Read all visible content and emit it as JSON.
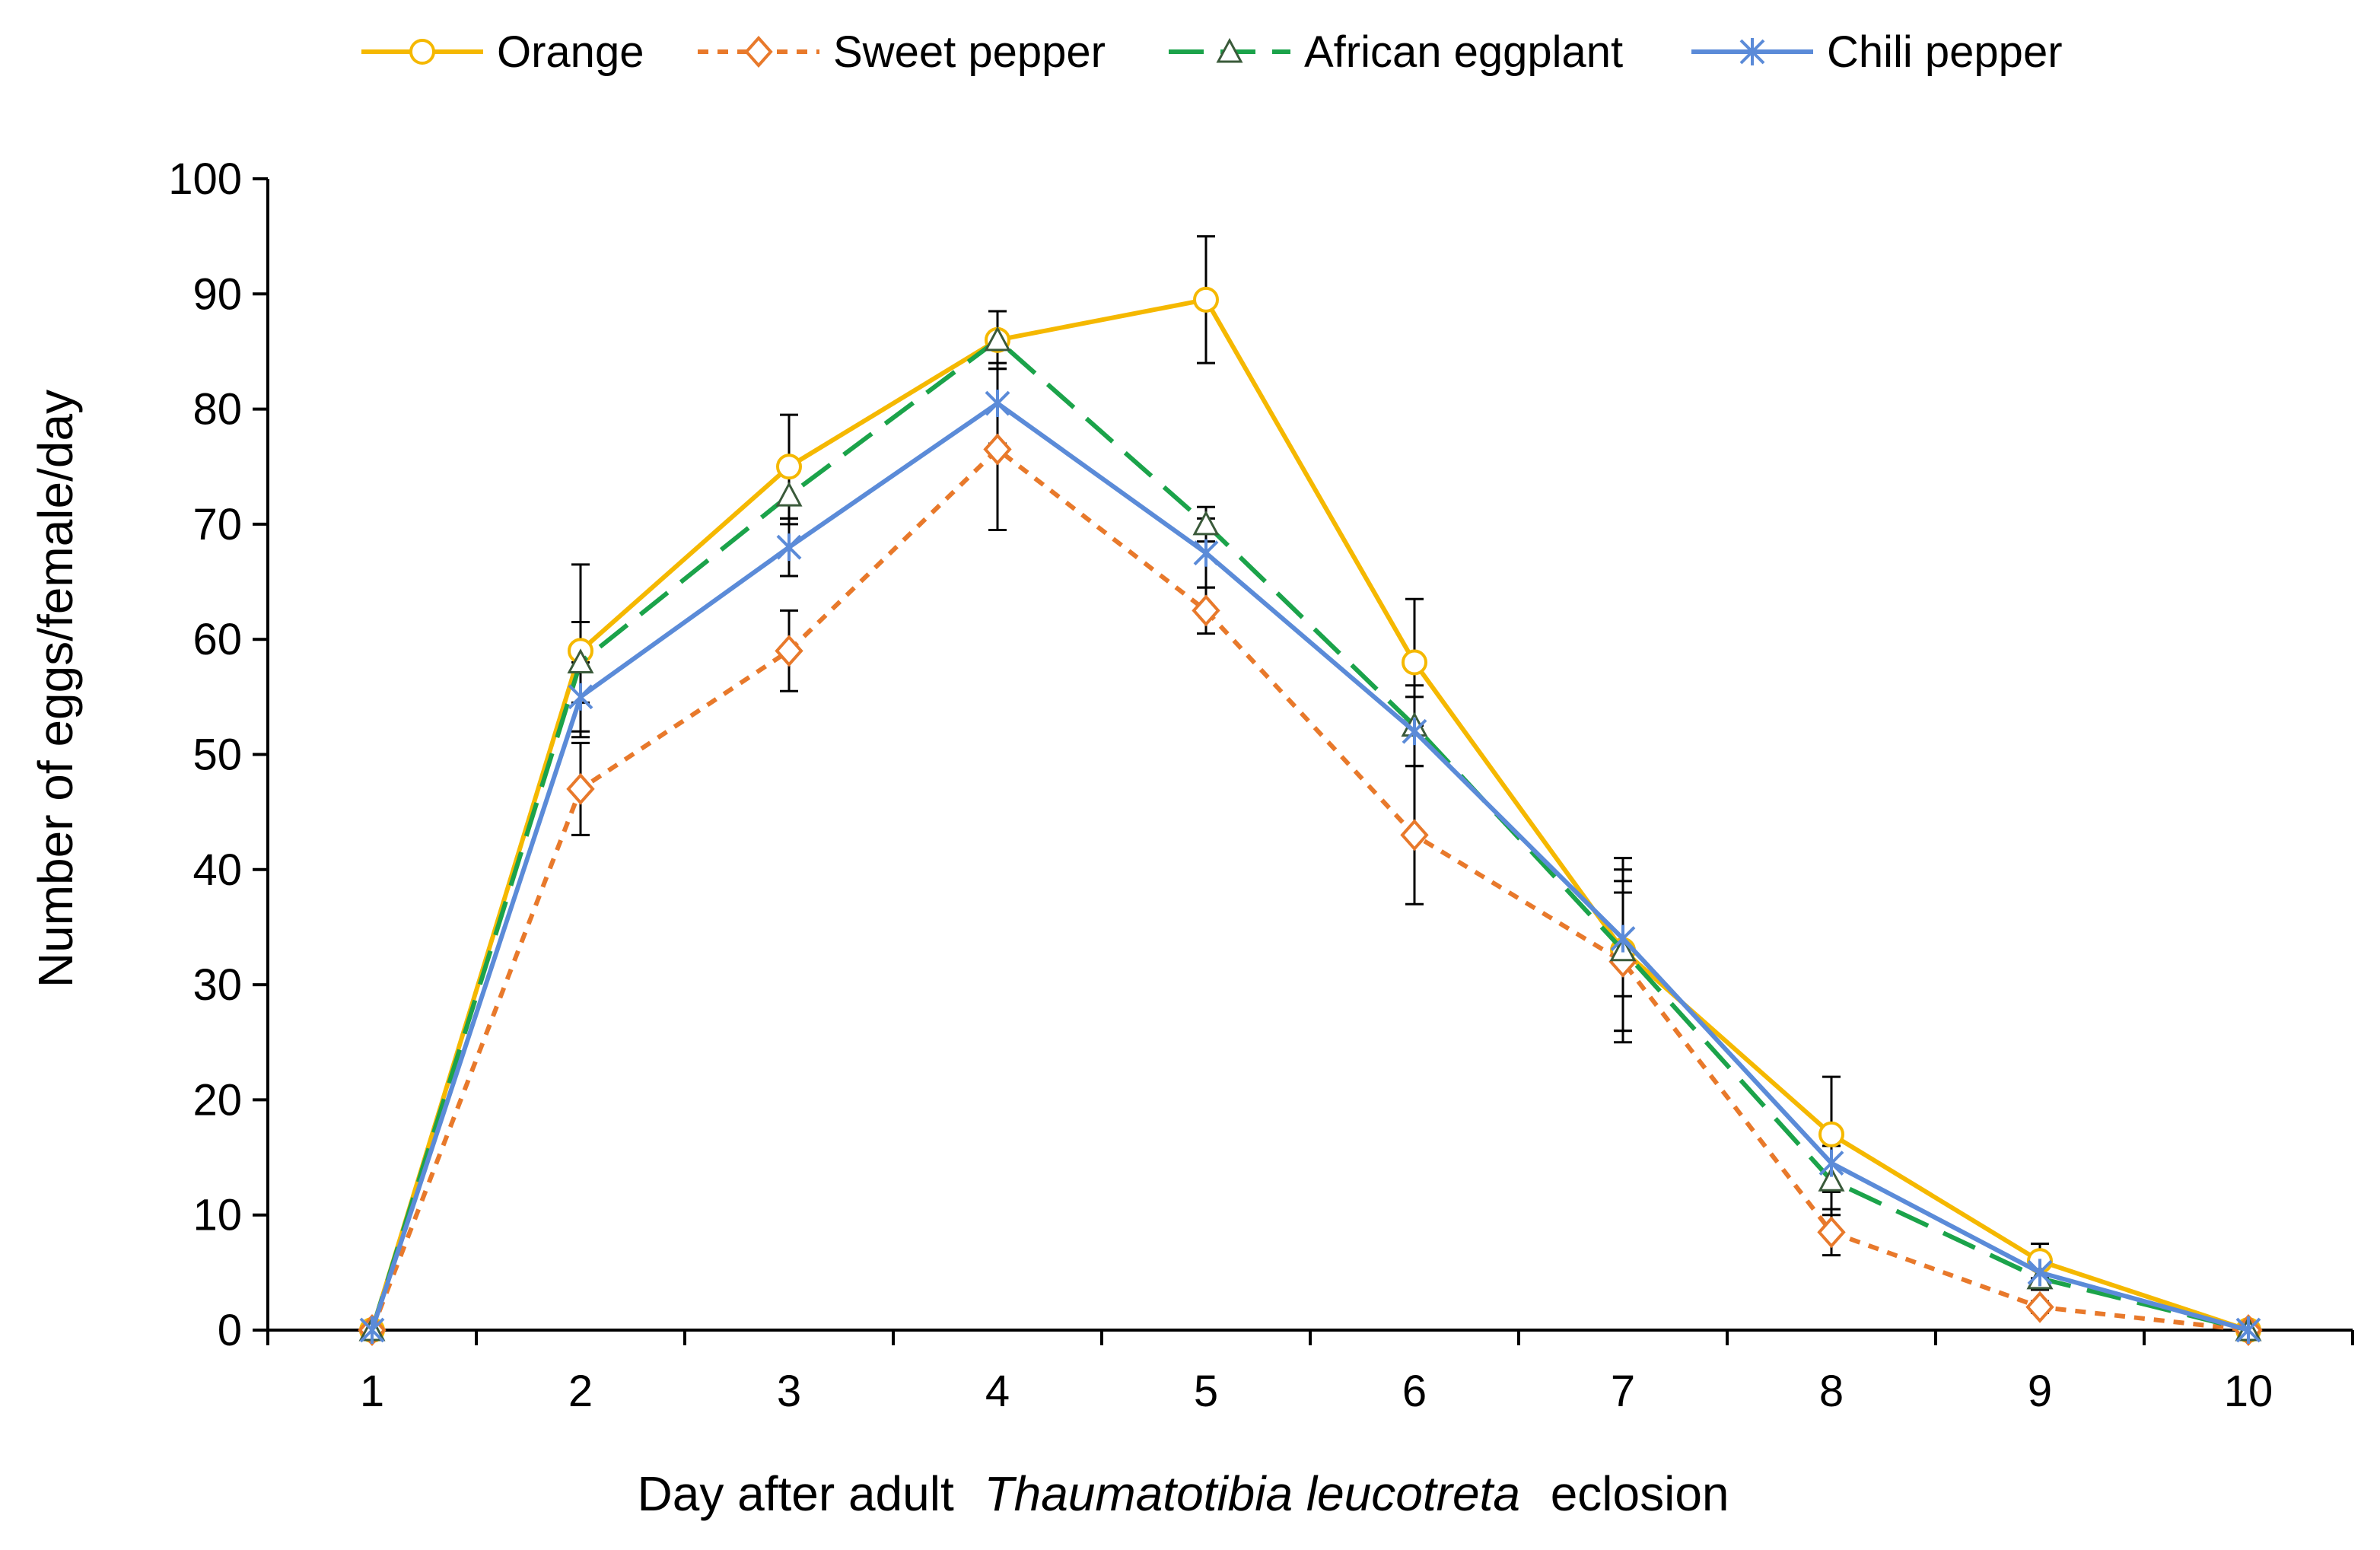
{
  "chart_data": {
    "type": "line",
    "title": "",
    "xlabel_prefix": "Day after adult",
    "xlabel_italic": "Thaumatotibia leucotreta",
    "xlabel_suffix": "eclosion",
    "ylabel": "Number of eggs/female/day",
    "x": [
      1,
      2,
      3,
      4,
      5,
      6,
      7,
      8,
      9,
      10
    ],
    "xticks": [
      "1",
      "2",
      "3",
      "4",
      "5",
      "6",
      "7",
      "8",
      "9",
      "10"
    ],
    "yticks": [
      "0",
      "10",
      "20",
      "30",
      "40",
      "50",
      "60",
      "70",
      "80",
      "90",
      "100"
    ],
    "ylim": [
      0,
      100
    ],
    "legend_position": "top",
    "series": [
      {
        "name": "Orange",
        "color": "#F5B800",
        "dash": "solid",
        "marker": "circle",
        "values": [
          0,
          59,
          75,
          86,
          89.5,
          58,
          33,
          17,
          6,
          0
        ],
        "errors": [
          0,
          7.5,
          4.5,
          2.5,
          5.5,
          5.5,
          8,
          5,
          1.5,
          0
        ]
      },
      {
        "name": "Sweet pepper",
        "color": "#E8792B",
        "dash": "short",
        "marker": "diamond",
        "values": [
          0,
          47,
          59,
          76.5,
          62.5,
          43,
          32,
          8.5,
          2,
          0
        ],
        "errors": [
          0,
          4,
          3.5,
          7,
          2,
          6,
          6,
          2,
          0.5,
          0
        ]
      },
      {
        "name": "African eggplant",
        "color": "#1BA34A",
        "dash": "long",
        "marker": "triangle",
        "values": [
          0,
          58,
          72.5,
          86,
          70,
          52.5,
          33,
          13,
          4.5,
          0
        ],
        "errors": [
          0,
          3.5,
          2.5,
          2.5,
          1.5,
          3.5,
          7,
          3,
          1,
          0
        ]
      },
      {
        "name": "Chili pepper",
        "color": "#5B8BD8",
        "dash": "solid",
        "marker": "asterisk",
        "values": [
          0,
          55,
          68,
          80.5,
          67.5,
          52,
          34,
          14.5,
          5,
          0
        ],
        "errors": [
          0,
          3,
          2.5,
          3.5,
          3,
          3,
          5,
          2,
          1,
          0
        ]
      }
    ]
  }
}
